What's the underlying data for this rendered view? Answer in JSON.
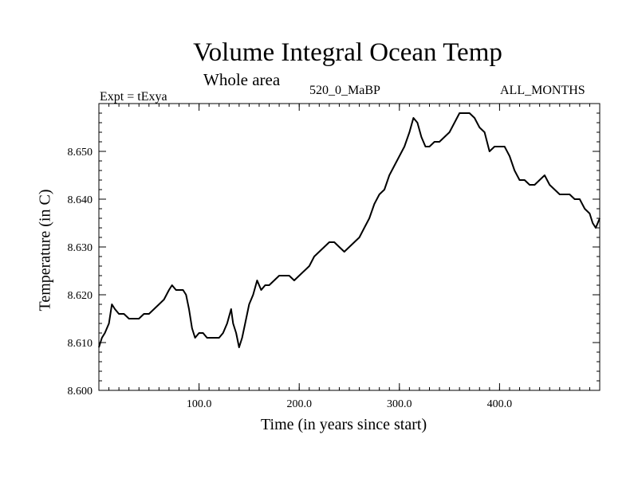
{
  "chart_data": {
    "type": "line",
    "title": "Volume Integral Ocean Temp",
    "subtitle": "Whole area",
    "annotations": {
      "experiment": "Expt = tExya",
      "run": "520_0_MaBP",
      "months": "ALL_MONTHS"
    },
    "xlabel": "Time (in years since start)",
    "ylabel": "Temperature (in C)",
    "xlim": [
      0,
      500
    ],
    "ylim": [
      8.6,
      8.66
    ],
    "xticks": [
      100,
      200,
      300,
      400
    ],
    "xtick_labels": [
      "100.0",
      "200.0",
      "300.0",
      "400.0"
    ],
    "yticks": [
      8.6,
      8.61,
      8.62,
      8.63,
      8.64,
      8.65
    ],
    "ytick_labels": [
      "8.600",
      "8.610",
      "8.620",
      "8.630",
      "8.640",
      "8.650"
    ],
    "grid": false,
    "series": [
      {
        "color": "#000000",
        "x": [
          0,
          3,
          6,
          10,
          13,
          16,
          20,
          25,
          30,
          35,
          40,
          45,
          50,
          55,
          60,
          65,
          70,
          73,
          77,
          80,
          84,
          87,
          90,
          93,
          96,
          100,
          104,
          108,
          112,
          116,
          120,
          124,
          128,
          132,
          134,
          137,
          140,
          143,
          146,
          150,
          154,
          158,
          162,
          166,
          170,
          175,
          180,
          185,
          190,
          195,
          200,
          205,
          210,
          215,
          220,
          225,
          230,
          235,
          240,
          245,
          250,
          255,
          260,
          265,
          270,
          275,
          280,
          285,
          290,
          295,
          300,
          305,
          310,
          314,
          318,
          322,
          326,
          330,
          335,
          340,
          345,
          350,
          355,
          360,
          365,
          370,
          375,
          380,
          385,
          390,
          395,
          400,
          405,
          410,
          415,
          420,
          425,
          430,
          435,
          440,
          445,
          450,
          455,
          460,
          465,
          470,
          475,
          480,
          485,
          490,
          493,
          496,
          500
        ],
        "values": [
          8.609,
          8.611,
          8.612,
          8.614,
          8.618,
          8.617,
          8.616,
          8.616,
          8.615,
          8.615,
          8.615,
          8.616,
          8.616,
          8.617,
          8.618,
          8.619,
          8.621,
          8.622,
          8.621,
          8.621,
          8.621,
          8.62,
          8.617,
          8.613,
          8.611,
          8.612,
          8.612,
          8.611,
          8.611,
          8.611,
          8.611,
          8.612,
          8.614,
          8.617,
          8.614,
          8.612,
          8.609,
          8.611,
          8.614,
          8.618,
          8.62,
          8.623,
          8.621,
          8.622,
          8.622,
          8.623,
          8.624,
          8.624,
          8.624,
          8.623,
          8.624,
          8.625,
          8.626,
          8.628,
          8.629,
          8.63,
          8.631,
          8.631,
          8.63,
          8.629,
          8.63,
          8.631,
          8.632,
          8.634,
          8.636,
          8.639,
          8.641,
          8.642,
          8.645,
          8.647,
          8.649,
          8.651,
          8.654,
          8.657,
          8.656,
          8.653,
          8.651,
          8.651,
          8.652,
          8.652,
          8.653,
          8.654,
          8.656,
          8.658,
          8.658,
          8.658,
          8.657,
          8.655,
          8.654,
          8.65,
          8.651,
          8.651,
          8.651,
          8.649,
          8.646,
          8.644,
          8.644,
          8.643,
          8.643,
          8.644,
          8.645,
          8.643,
          8.642,
          8.641,
          8.641,
          8.641,
          8.64,
          8.64,
          8.638,
          8.637,
          8.635,
          8.634,
          8.636
        ]
      }
    ]
  }
}
